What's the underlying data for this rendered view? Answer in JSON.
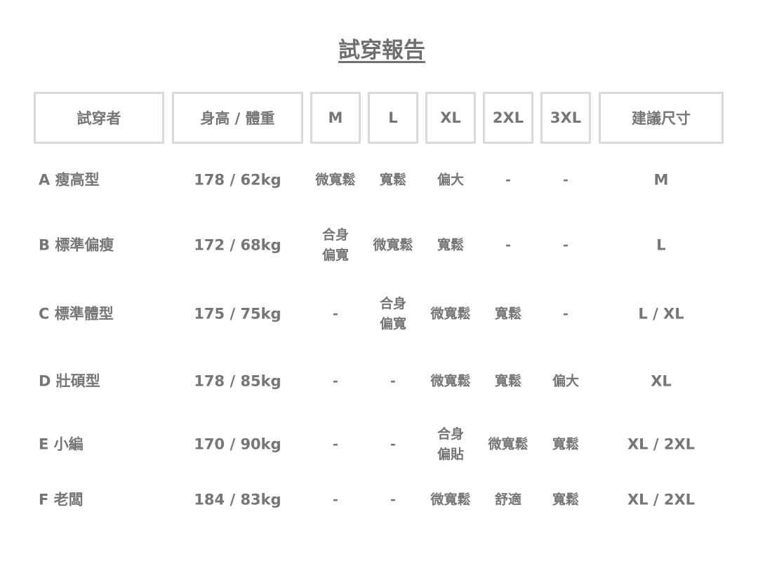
{
  "title": "試穿報告",
  "headers": [
    "試穿者",
    "身高 / 體重",
    "M",
    "L",
    "XL",
    "2XL",
    "3XL",
    "建議尺寸"
  ],
  "rows": [
    {
      "name": "A 瘦高型",
      "hw": "178 / 62kg",
      "sizes": [
        "微寬鬆",
        "寬鬆",
        "偏大",
        "-",
        "-"
      ],
      "rec": "M"
    },
    {
      "name": "B 標準偏瘦",
      "hw": "172 / 68kg",
      "sizes": [
        "合身\n偏寬",
        "微寬鬆",
        "寬鬆",
        "-",
        "-"
      ],
      "rec": "L"
    },
    {
      "name": "C 標準體型",
      "hw": "175 / 75kg",
      "sizes": [
        "-",
        "合身\n偏寬",
        "微寬鬆",
        "寬鬆",
        "-"
      ],
      "rec": "L / XL"
    },
    {
      "name": "D 壯碩型",
      "hw": "178 / 85kg",
      "sizes": [
        "-",
        "-",
        "微寬鬆",
        "寬鬆",
        "偏大"
      ],
      "rec": "XL"
    },
    {
      "name": "E 小編",
      "hw": "170 / 90kg",
      "sizes": [
        "-",
        "-",
        "合身\n偏貼",
        "微寬鬆",
        "寬鬆"
      ],
      "rec": "XL / 2XL"
    },
    {
      "name": "F 老闆",
      "hw": "184 / 83kg",
      "sizes": [
        "-",
        "-",
        "微寬鬆",
        "舒適",
        "寬鬆"
      ],
      "rec": "XL / 2XL"
    }
  ]
}
